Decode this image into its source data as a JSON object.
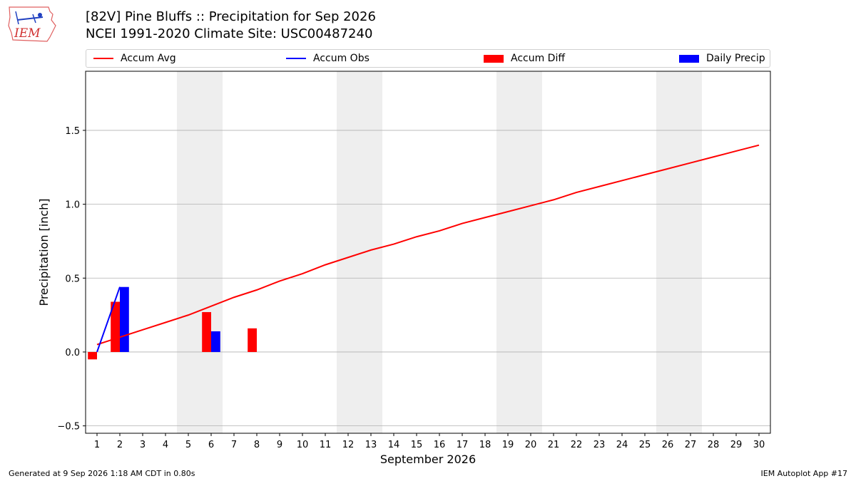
{
  "header": {
    "logo_text": "IEM",
    "title_line1": "[82V] Pine Bluffs :: Precipitation for Sep 2026",
    "title_line2": "NCEI 1991-2020 Climate Site: USC00487240"
  },
  "footer": {
    "generated": "Generated at 9 Sep 2026 1:18 AM CDT in 0.80s",
    "app": "IEM Autoplot App #17"
  },
  "colors": {
    "accum_avg": "#ff0000",
    "accum_obs": "#0000ff",
    "accum_diff": "#ff0000",
    "daily_precip": "#0000ff",
    "weekend_shade": "#eeeeee",
    "grid": "#b0b0b0"
  },
  "chart_data": {
    "type": "bar",
    "xlabel": "September 2026",
    "ylabel": "Precipitation [inch]",
    "x": [
      1,
      2,
      3,
      4,
      5,
      6,
      7,
      8,
      9,
      10,
      11,
      12,
      13,
      14,
      15,
      16,
      17,
      18,
      19,
      20,
      21,
      22,
      23,
      24,
      25,
      26,
      27,
      28,
      29,
      30
    ],
    "xlim": [
      0.5,
      30.5
    ],
    "ylim": [
      -0.55,
      1.9
    ],
    "yticks": [
      -0.5,
      0.0,
      0.5,
      1.0,
      1.5
    ],
    "ytick_labels": [
      "−0.5",
      "0.0",
      "0.5",
      "1.0",
      "1.5"
    ],
    "grid": "horizontal",
    "legend_position": "top",
    "shaded_days": [
      [
        5,
        6
      ],
      [
        12,
        13
      ],
      [
        19,
        20
      ],
      [
        26,
        27
      ]
    ],
    "series": [
      {
        "name": "Accum Avg",
        "kind": "line",
        "x": [
          1,
          2,
          3,
          4,
          5,
          6,
          7,
          8,
          9,
          10,
          11,
          12,
          13,
          14,
          15,
          16,
          17,
          18,
          19,
          20,
          21,
          22,
          23,
          24,
          25,
          26,
          27,
          28,
          29,
          30
        ],
        "values": [
          0.05,
          0.1,
          0.15,
          0.2,
          0.25,
          0.31,
          0.37,
          0.42,
          0.48,
          0.53,
          0.59,
          0.64,
          0.69,
          0.73,
          0.78,
          0.82,
          0.87,
          0.91,
          0.95,
          0.99,
          1.03,
          1.08,
          1.12,
          1.16,
          1.2,
          1.24,
          1.28,
          1.32,
          1.36,
          1.4
        ]
      },
      {
        "name": "Accum Obs",
        "kind": "line",
        "x": [
          1,
          2
        ],
        "values": [
          0.0,
          0.44
        ]
      },
      {
        "name": "Accum Diff",
        "kind": "bar",
        "x": [
          1,
          2,
          6,
          8
        ],
        "values": [
          -0.05,
          0.34,
          0.27,
          0.16
        ]
      },
      {
        "name": "Daily Precip",
        "kind": "bar",
        "x": [
          2,
          6
        ],
        "values": [
          0.44,
          0.14
        ]
      }
    ]
  }
}
